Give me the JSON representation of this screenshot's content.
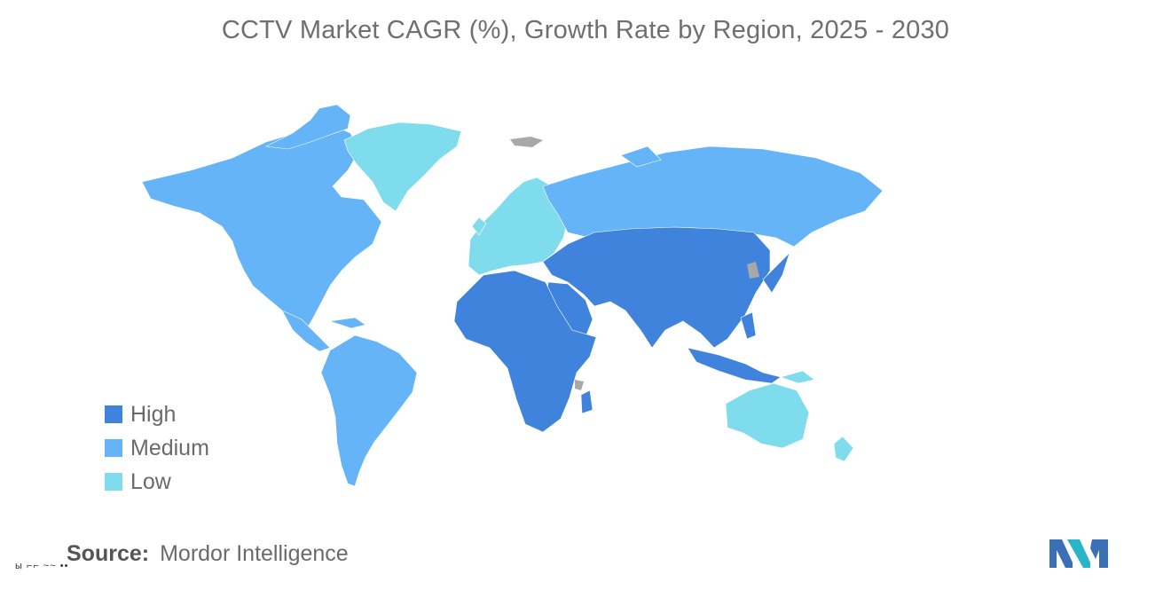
{
  "title": "CCTV Market CAGR (%), Growth Rate by Region, 2025 - 2030",
  "colors": {
    "high": "#3f83dc",
    "medium": "#64b4f7",
    "low": "#7fdcec",
    "no_data": "#a8a8a8",
    "text": "#6f6f6f"
  },
  "legend": [
    {
      "label": "High",
      "color": "#3f83dc"
    },
    {
      "label": "Medium",
      "color": "#64b4f7"
    },
    {
      "label": "Low",
      "color": "#7fdcec"
    }
  ],
  "regions": {
    "north_america": "Medium",
    "south_america": "Medium",
    "greenland": "Low",
    "europe": "Low",
    "russia": "Medium",
    "asia": "High",
    "middle_east": "High",
    "africa": "High",
    "oceania": "Low"
  },
  "source": {
    "label": "Source:",
    "value": "Mordor Intelligence"
  },
  "logo_icon": "mordor-intelligence-logo-icon"
}
